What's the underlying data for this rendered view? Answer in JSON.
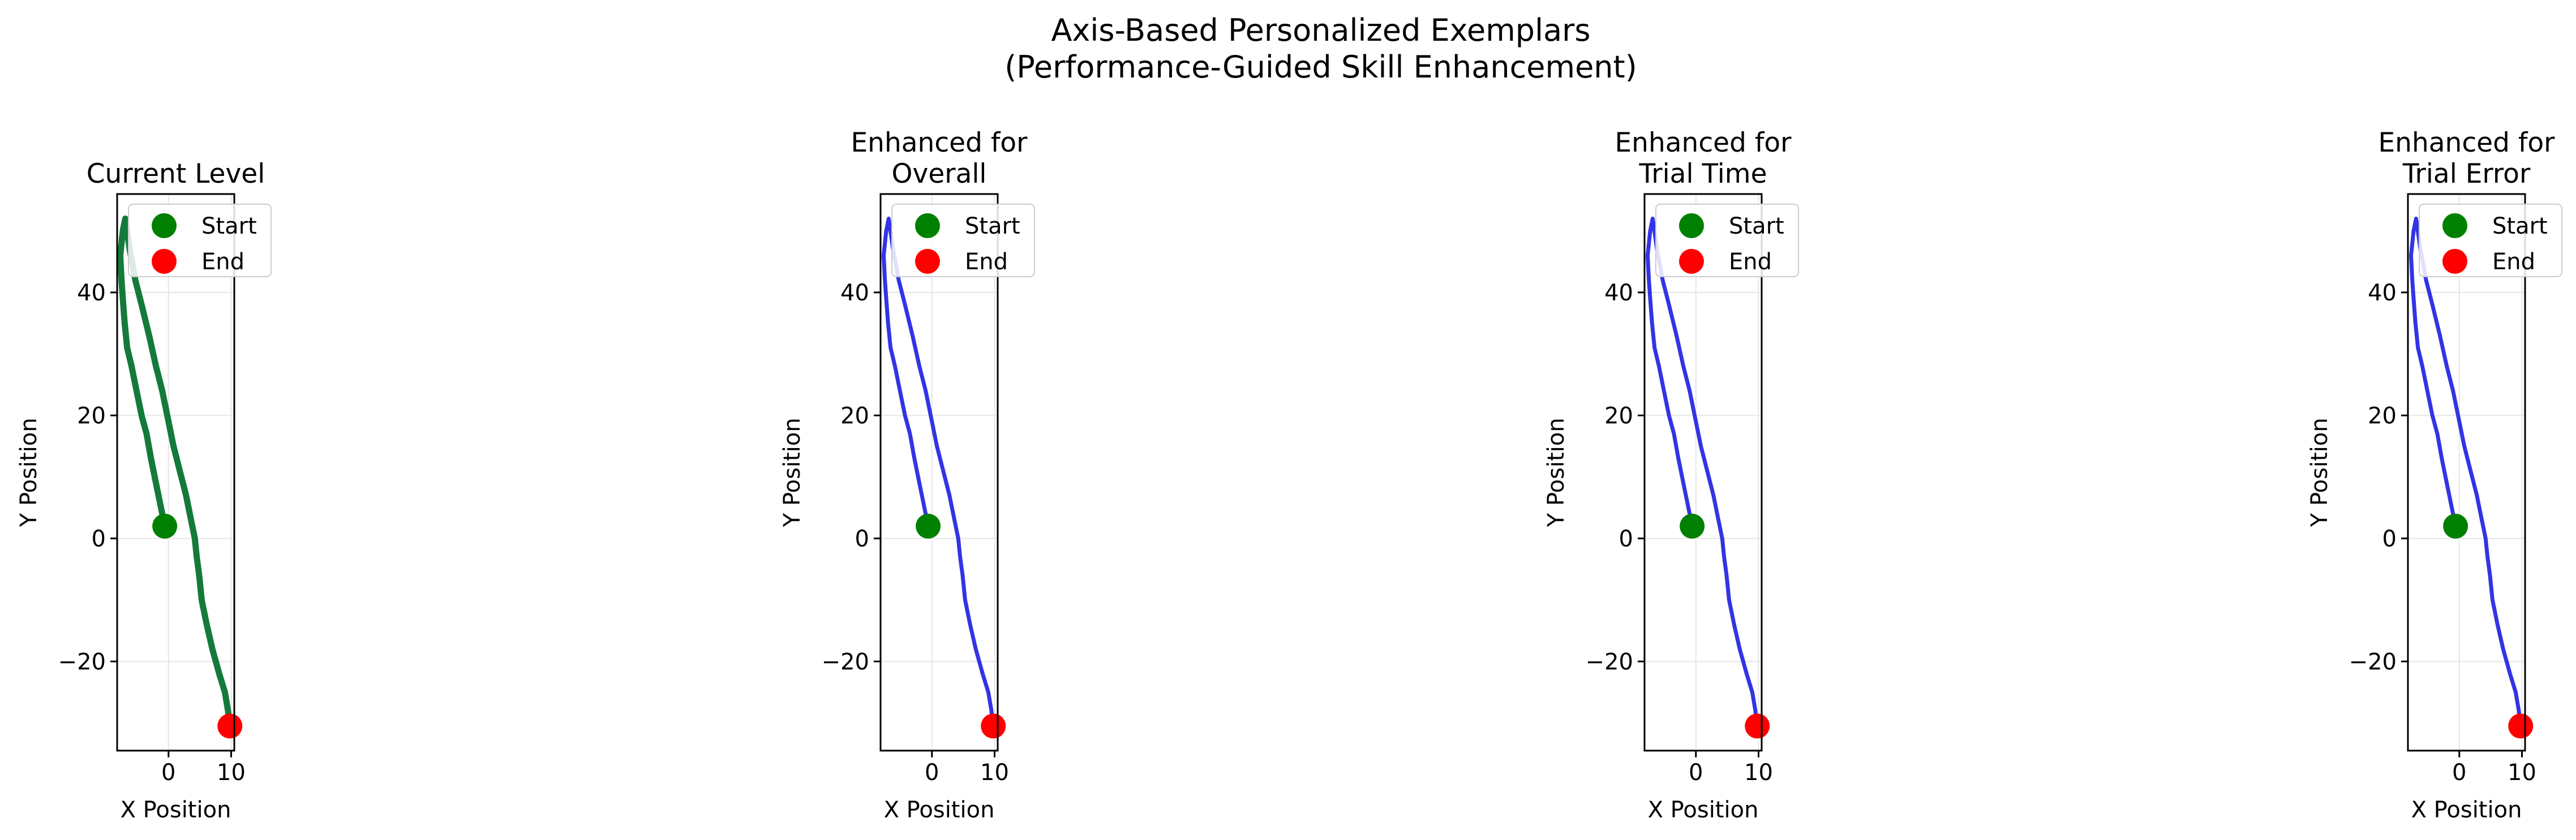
{
  "figure": {
    "title_lines": [
      "Axis-Based Personalized Exemplars",
      "(Performance-Guided Skill Enhancement)"
    ]
  },
  "chart_data": [
    {
      "type": "line",
      "title_lines": [
        "Current Level"
      ],
      "xlabel": "X Position",
      "ylabel": "Y Position",
      "xlim": [
        -8.2,
        10.5
      ],
      "ylim": [
        -34.5,
        56
      ],
      "xticks": [
        0,
        10
      ],
      "yticks": [
        -20,
        0,
        20,
        40
      ],
      "grid": true,
      "legend": {
        "position": "upper-right",
        "entries": [
          "Start",
          "End"
        ]
      },
      "line_color": "#137a3c",
      "line_width": 11,
      "series": [
        {
          "x": [
            -0.6,
            -1.2,
            -2.0,
            -2.8,
            -3.5,
            -4.3,
            -5.1,
            -5.9,
            -6.6,
            -7.0,
            -7.3,
            -7.5,
            -7.7,
            -7.3,
            -6.9,
            -6.2,
            -5.3,
            -4.3,
            -3.1,
            -2.0,
            -1.0,
            0.0,
            0.8,
            1.8,
            2.8,
            3.6,
            4.2,
            4.5,
            4.9,
            5.3,
            6.1,
            7.0,
            8.1,
            9.0,
            9.5,
            9.8
          ],
          "y": [
            2,
            5,
            9,
            13,
            17,
            20,
            24,
            28,
            31,
            35,
            39,
            42,
            46,
            50,
            52,
            47,
            42,
            38,
            33,
            28,
            24,
            19,
            15,
            11,
            7,
            3,
            0,
            -3,
            -6,
            -10,
            -14,
            -18,
            -22,
            -25,
            -28,
            -31
          ]
        }
      ],
      "start": {
        "x": -0.6,
        "y": 2,
        "color": "#008000"
      },
      "end": {
        "x": 9.8,
        "y": -30.5,
        "color": "#ff0000"
      }
    },
    {
      "type": "line",
      "title_lines": [
        "Enhanced for",
        "Overall"
      ],
      "xlabel": "X Position",
      "ylabel": "Y Position",
      "xlim": [
        -8.2,
        10.5
      ],
      "ylim": [
        -34.5,
        56
      ],
      "xticks": [
        0,
        10
      ],
      "yticks": [
        -20,
        0,
        20,
        40
      ],
      "grid": true,
      "legend": {
        "position": "upper-right",
        "entries": [
          "Start",
          "End"
        ]
      },
      "line_color": "#3333e6",
      "line_width": 7,
      "series": [
        {
          "x": [
            -0.6,
            -1.2,
            -2.0,
            -2.8,
            -3.5,
            -4.3,
            -5.1,
            -5.9,
            -6.6,
            -7.0,
            -7.3,
            -7.5,
            -7.7,
            -7.3,
            -6.9,
            -6.2,
            -5.3,
            -4.3,
            -3.1,
            -2.0,
            -1.0,
            0.0,
            0.8,
            1.8,
            2.8,
            3.6,
            4.2,
            4.5,
            4.9,
            5.3,
            6.1,
            7.0,
            8.1,
            9.0,
            9.5,
            9.8
          ],
          "y": [
            2,
            5,
            9,
            13,
            17,
            20,
            24,
            28,
            31,
            35,
            39,
            42,
            46,
            50,
            52,
            47,
            42,
            38,
            33,
            28,
            24,
            19,
            15,
            11,
            7,
            3,
            0,
            -3,
            -6,
            -10,
            -14,
            -18,
            -22,
            -25,
            -28,
            -31
          ]
        }
      ],
      "start": {
        "x": -0.6,
        "y": 2,
        "color": "#008000"
      },
      "end": {
        "x": 9.8,
        "y": -30.5,
        "color": "#ff0000"
      }
    },
    {
      "type": "line",
      "title_lines": [
        "Enhanced for",
        "Trial Time"
      ],
      "xlabel": "X Position",
      "ylabel": "Y Position",
      "xlim": [
        -8.2,
        10.5
      ],
      "ylim": [
        -34.5,
        56
      ],
      "xticks": [
        0,
        10
      ],
      "yticks": [
        -20,
        0,
        20,
        40
      ],
      "grid": true,
      "legend": {
        "position": "upper-right",
        "entries": [
          "Start",
          "End"
        ]
      },
      "line_color": "#3333e6",
      "line_width": 7,
      "series": [
        {
          "x": [
            -0.6,
            -1.2,
            -2.0,
            -2.8,
            -3.5,
            -4.3,
            -5.1,
            -5.9,
            -6.6,
            -7.0,
            -7.3,
            -7.5,
            -7.7,
            -7.3,
            -6.9,
            -6.2,
            -5.3,
            -4.3,
            -3.1,
            -2.0,
            -1.0,
            0.0,
            0.8,
            1.8,
            2.8,
            3.6,
            4.2,
            4.5,
            4.9,
            5.3,
            6.1,
            7.0,
            8.1,
            9.0,
            9.5,
            9.8
          ],
          "y": [
            2,
            5,
            9,
            13,
            17,
            20,
            24,
            28,
            31,
            35,
            39,
            42,
            46,
            50,
            52,
            47,
            42,
            38,
            33,
            28,
            24,
            19,
            15,
            11,
            7,
            3,
            0,
            -3,
            -6,
            -10,
            -14,
            -18,
            -22,
            -25,
            -28,
            -31
          ]
        }
      ],
      "start": {
        "x": -0.6,
        "y": 2,
        "color": "#008000"
      },
      "end": {
        "x": 9.8,
        "y": -30.5,
        "color": "#ff0000"
      }
    },
    {
      "type": "line",
      "title_lines": [
        "Enhanced for",
        "Trial Error"
      ],
      "xlabel": "X Position",
      "ylabel": "Y Position",
      "xlim": [
        -8.2,
        10.5
      ],
      "ylim": [
        -34.5,
        56
      ],
      "xticks": [
        0,
        10
      ],
      "yticks": [
        -20,
        0,
        20,
        40
      ],
      "grid": true,
      "legend": {
        "position": "upper-right",
        "entries": [
          "Start",
          "End"
        ]
      },
      "line_color": "#3333e6",
      "line_width": 7,
      "series": [
        {
          "x": [
            -0.6,
            -1.2,
            -2.0,
            -2.8,
            -3.5,
            -4.3,
            -5.1,
            -5.9,
            -6.6,
            -7.0,
            -7.3,
            -7.5,
            -7.7,
            -7.3,
            -6.9,
            -6.2,
            -5.3,
            -4.3,
            -3.1,
            -2.0,
            -1.0,
            0.0,
            0.8,
            1.8,
            2.8,
            3.6,
            4.2,
            4.5,
            4.9,
            5.3,
            6.1,
            7.0,
            8.1,
            9.0,
            9.5,
            9.8
          ],
          "y": [
            2,
            5,
            9,
            13,
            17,
            20,
            24,
            28,
            31,
            35,
            39,
            42,
            46,
            50,
            52,
            47,
            42,
            38,
            33,
            28,
            24,
            19,
            15,
            11,
            7,
            3,
            0,
            -3,
            -6,
            -10,
            -14,
            -18,
            -22,
            -25,
            -28,
            -31
          ]
        }
      ],
      "start": {
        "x": -0.6,
        "y": 2,
        "color": "#008000"
      },
      "end": {
        "x": 9.8,
        "y": -30.5,
        "color": "#ff0000"
      }
    }
  ]
}
